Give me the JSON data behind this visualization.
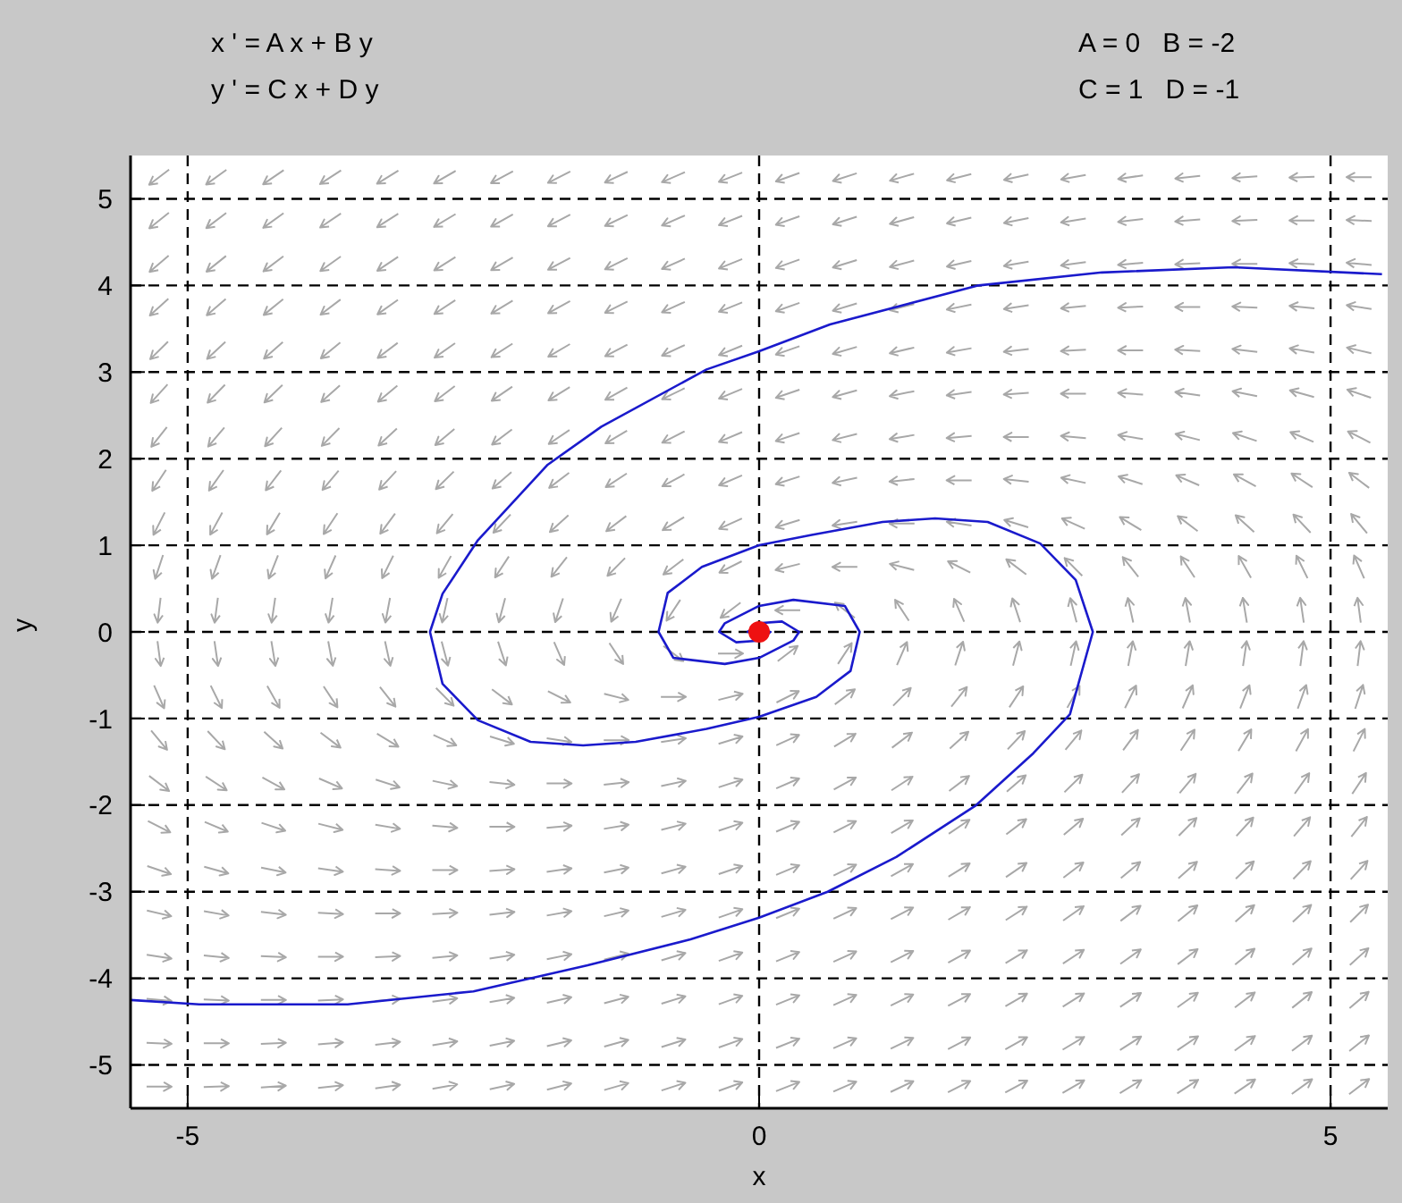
{
  "chart_data": {
    "type": "line",
    "xlabel": "x",
    "ylabel": "y",
    "annotations": [
      "x ' = A x + B y",
      "y ' = C x + D y",
      "A = 0   B = -2",
      "C = 1   D = -1"
    ],
    "xlim": [
      -5.5,
      5.5
    ],
    "ylim": [
      -5.5,
      5.5
    ],
    "xticks": [
      -5,
      0,
      5
    ],
    "yticks": [
      -5,
      -4,
      -3,
      -2,
      -1,
      0,
      1,
      2,
      3,
      4,
      5
    ],
    "grid": true,
    "legend": false,
    "marker": "none",
    "line_style": "solid",
    "series": [
      {
        "color": "#1a1acc",
        "x": [
          5.45,
          4.15,
          3,
          1.92,
          0.62,
          0,
          -0.46,
          -1.38,
          -1.85,
          -2.46,
          -2.77,
          -2.88,
          -2.77,
          -2.46,
          -2,
          -1.54,
          -1.08,
          -0.46,
          0,
          0.5,
          0.8,
          0.88,
          0.75,
          0.3,
          0,
          -0.3,
          -0.35,
          -0.2,
          0,
          0.1,
          0
        ],
        "values": [
          4.13,
          4.21,
          4.15,
          4,
          3.55,
          3.24,
          3.03,
          2.37,
          1.93,
          1.06,
          0.44,
          0,
          -0.6,
          -1.02,
          -1.27,
          -1.31,
          -1.27,
          -1.12,
          -0.98,
          -0.75,
          -0.45,
          0,
          0.3,
          0.37,
          0.3,
          0.1,
          0,
          -0.12,
          -0.1,
          0,
          0
        ]
      },
      {
        "color": "#1a1acc",
        "x": [
          -5.5,
          -4.9,
          -3.6,
          -2.5,
          -1.5,
          -0.6,
          0,
          0.6,
          1.2,
          1.9,
          2.4,
          2.72,
          2.92,
          2.77,
          2.46,
          2,
          1.54,
          1.08,
          0.46,
          0,
          -0.5,
          -0.8,
          -0.88,
          -0.75,
          -0.3,
          0,
          0.3,
          0.35,
          0.2,
          0,
          -0.1,
          0
        ],
        "values": [
          -4.25,
          -4.3,
          -4.3,
          -4.15,
          -3.85,
          -3.55,
          -3.3,
          -3,
          -2.6,
          -2,
          -1.4,
          -0.95,
          0,
          0.6,
          1.02,
          1.27,
          1.31,
          1.27,
          1.12,
          1,
          0.75,
          0.45,
          0,
          -0.3,
          -0.37,
          -0.3,
          -0.1,
          0,
          0.12,
          0.1,
          0,
          0
        ]
      },
      {
        "type": "scatter",
        "color": "#ee1111",
        "marker": "circle",
        "x": [
          0
        ],
        "values": [
          0
        ]
      }
    ]
  }
}
